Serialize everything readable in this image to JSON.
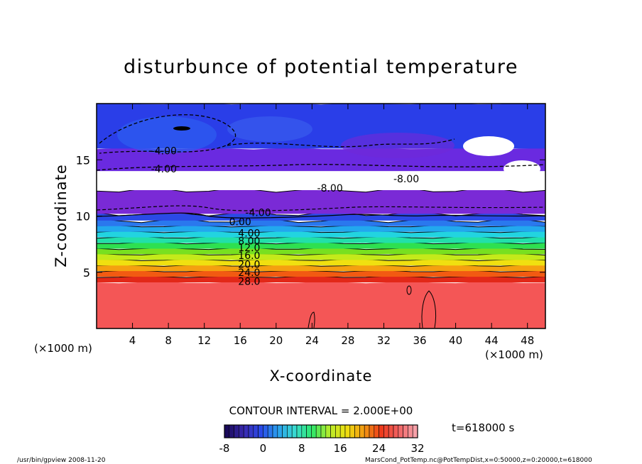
{
  "chart_data": {
    "type": "heatmap",
    "title": "disturbunce of potential temperature",
    "xlabel": "X-coordinate",
    "ylabel": "Z-coordinate",
    "x_unit_left": "(×1000 m)",
    "x_unit_right": "(×1000 m)",
    "xlim": [
      0,
      50
    ],
    "ylim": [
      0,
      20
    ],
    "x_ticks": [
      4,
      8,
      12,
      16,
      20,
      24,
      28,
      32,
      36,
      40,
      44,
      48
    ],
    "y_ticks": [
      5,
      10,
      15
    ],
    "contour_interval_text": "CONTOUR INTERVAL = 2.000E+00",
    "time_text": "t=618000 s",
    "colorbar": {
      "min": -8,
      "max": 32,
      "tick_values": [
        -8,
        0,
        8,
        16,
        24,
        32
      ],
      "colors": [
        "#1a0a5a",
        "#3a2ab0",
        "#2a4ae8",
        "#2aa0ee",
        "#3adcd0",
        "#2ee86a",
        "#b8ec2a",
        "#f0e010",
        "#f29a12",
        "#ee3a1a",
        "#f06060",
        "#f6a0a8"
      ]
    },
    "contour_labels": [
      {
        "text": "-4.00",
        "x": 7.5,
        "y": 15.8
      },
      {
        "text": "-4.00",
        "x": 7.5,
        "y": 14.2
      },
      {
        "text": "-8.00",
        "x": 26.0,
        "y": 12.5
      },
      {
        "text": "-8.00",
        "x": 34.5,
        "y": 13.3
      },
      {
        "text": "-4.00",
        "x": 18.0,
        "y": 10.3
      },
      {
        "text": "0.00",
        "x": 16.0,
        "y": 9.5
      },
      {
        "text": "4.00",
        "x": 17.0,
        "y": 8.5
      },
      {
        "text": "8.00",
        "x": 17.0,
        "y": 7.8
      },
      {
        "text": "12.0",
        "x": 17.0,
        "y": 7.2
      },
      {
        "text": "16.0",
        "x": 17.0,
        "y": 6.5
      },
      {
        "text": "20.0",
        "x": 17.0,
        "y": 5.7
      },
      {
        "text": "24.0",
        "x": 17.0,
        "y": 5.0
      },
      {
        "text": "28.0",
        "x": 17.0,
        "y": 4.2
      }
    ],
    "layers": [
      {
        "y0": 0,
        "y1": 4.1,
        "color": "#f45656",
        "label": "28.0"
      },
      {
        "y0": 4.1,
        "y1": 4.6,
        "color": "#e22818"
      },
      {
        "y0": 4.6,
        "y1": 5.1,
        "color": "#f25a12"
      },
      {
        "y0": 5.1,
        "y1": 5.6,
        "color": "#f5a010"
      },
      {
        "y0": 5.6,
        "y1": 6.1,
        "color": "#f0e010"
      },
      {
        "y0": 6.1,
        "y1": 6.6,
        "color": "#c4ea1a"
      },
      {
        "y0": 6.6,
        "y1": 7.1,
        "color": "#78e020"
      },
      {
        "y0": 7.1,
        "y1": 7.6,
        "color": "#2ee050"
      },
      {
        "y0": 7.6,
        "y1": 8.1,
        "color": "#22e0a8"
      },
      {
        "y0": 8.1,
        "y1": 8.6,
        "color": "#22d4e0"
      },
      {
        "y0": 8.6,
        "y1": 9.1,
        "color": "#22a8ee"
      },
      {
        "y0": 9.1,
        "y1": 9.6,
        "color": "#2a78ee"
      },
      {
        "y0": 9.6,
        "y1": 10.2,
        "color": "#2a4ae6"
      },
      {
        "y0": 10.2,
        "y1": 12.3,
        "color": "#7a2ad6"
      },
      {
        "y0": 12.3,
        "y1": 14.0,
        "color": "#ffffff"
      },
      {
        "y0": 14.0,
        "y1": 16.0,
        "color": "#6a2ae0"
      },
      {
        "y0": 16.0,
        "y1": 20.0,
        "color": "#2a3ee8"
      }
    ]
  },
  "footer": {
    "left": "/usr/bin/gpview   2008-11-20",
    "right": "MarsCond_PotTemp.nc@PotTempDist,x=0:50000,z=0:20000,t=618000"
  }
}
